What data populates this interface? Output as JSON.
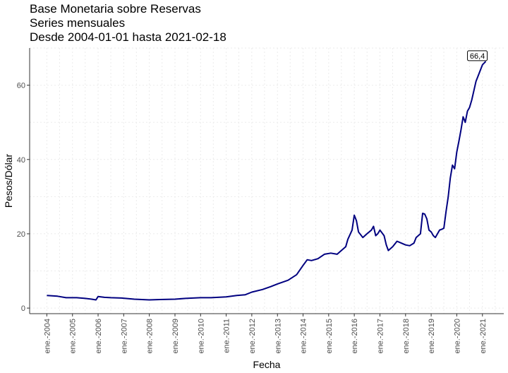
{
  "header": {
    "title": "Base Monetaria sobre Reservas",
    "subtitle": "Series mensuales",
    "range": "Desde 2004-01-01 hasta 2021-02-18"
  },
  "colors": {
    "line": "#000080",
    "axis": "#333333",
    "grid": "#ebebeb"
  },
  "chart_data": {
    "type": "line",
    "title": "Base Monetaria sobre Reservas",
    "xlabel": "Fecha",
    "ylabel": "Pesos/Dólar",
    "xlim": [
      "2003-05-01",
      "2021-11-01"
    ],
    "ylim": [
      -1.5,
      70
    ],
    "grid": "dotted",
    "y_ticks": [
      0,
      20,
      40,
      60
    ],
    "x_ticks": [
      {
        "date": "2004-01-01",
        "label": "ene.-2004"
      },
      {
        "date": "2005-01-01",
        "label": "ene.-2005"
      },
      {
        "date": "2006-01-01",
        "label": "ene.-2006"
      },
      {
        "date": "2007-01-01",
        "label": "ene.-2007"
      },
      {
        "date": "2008-01-01",
        "label": "ene.-2008"
      },
      {
        "date": "2009-01-01",
        "label": "ene.-2009"
      },
      {
        "date": "2010-01-01",
        "label": "ene.-2010"
      },
      {
        "date": "2011-01-01",
        "label": "ene.-2011"
      },
      {
        "date": "2012-01-01",
        "label": "ene.-2012"
      },
      {
        "date": "2013-01-01",
        "label": "ene.-2013"
      },
      {
        "date": "2014-01-01",
        "label": "ene.-2014"
      },
      {
        "date": "2015-01-01",
        "label": "ene.-2015"
      },
      {
        "date": "2016-01-01",
        "label": "ene.-2016"
      },
      {
        "date": "2017-01-01",
        "label": "ene.-2017"
      },
      {
        "date": "2018-01-01",
        "label": "ene.-2018"
      },
      {
        "date": "2019-01-01",
        "label": "ene.-2019"
      },
      {
        "date": "2020-01-01",
        "label": "ene.-2020"
      },
      {
        "date": "2021-01-01",
        "label": "ene.-2021"
      }
    ],
    "annotation": {
      "date": "2021-02-18",
      "value": 66.4,
      "label": "66,4"
    },
    "series": [
      {
        "points": [
          [
            "2004-01-01",
            3.4
          ],
          [
            "2004-06-01",
            3.2
          ],
          [
            "2004-10-01",
            2.8
          ],
          [
            "2005-03-01",
            2.8
          ],
          [
            "2005-07-01",
            2.6
          ],
          [
            "2005-10-01",
            2.4
          ],
          [
            "2005-12-01",
            2.2
          ],
          [
            "2006-01-01",
            3.1
          ],
          [
            "2006-04-01",
            2.9
          ],
          [
            "2006-07-01",
            2.8
          ],
          [
            "2006-12-01",
            2.7
          ],
          [
            "2007-06-01",
            2.4
          ],
          [
            "2008-01-01",
            2.2
          ],
          [
            "2008-06-01",
            2.3
          ],
          [
            "2009-01-01",
            2.4
          ],
          [
            "2009-06-01",
            2.6
          ],
          [
            "2010-01-01",
            2.8
          ],
          [
            "2010-06-01",
            2.8
          ],
          [
            "2011-01-01",
            3.0
          ],
          [
            "2011-06-01",
            3.4
          ],
          [
            "2011-10-01",
            3.6
          ],
          [
            "2012-01-01",
            4.3
          ],
          [
            "2012-06-01",
            5.0
          ],
          [
            "2012-10-01",
            5.8
          ],
          [
            "2013-01-01",
            6.5
          ],
          [
            "2013-06-01",
            7.5
          ],
          [
            "2013-10-01",
            9.0
          ],
          [
            "2014-01-01",
            11.5
          ],
          [
            "2014-03-01",
            13.0
          ],
          [
            "2014-05-01",
            12.8
          ],
          [
            "2014-08-01",
            13.3
          ],
          [
            "2014-11-01",
            14.5
          ],
          [
            "2015-02-01",
            14.8
          ],
          [
            "2015-05-01",
            14.5
          ],
          [
            "2015-07-01",
            15.5
          ],
          [
            "2015-09-01",
            16.5
          ],
          [
            "2015-10-01",
            18.5
          ],
          [
            "2015-12-01",
            21.0
          ],
          [
            "2016-01-01",
            25.0
          ],
          [
            "2016-02-01",
            23.5
          ],
          [
            "2016-03-01",
            20.5
          ],
          [
            "2016-05-01",
            19.0
          ],
          [
            "2016-07-01",
            20.0
          ],
          [
            "2016-09-01",
            21.0
          ],
          [
            "2016-10-01",
            22.0
          ],
          [
            "2016-11-01",
            19.5
          ],
          [
            "2016-12-01",
            20.0
          ],
          [
            "2017-01-01",
            21.0
          ],
          [
            "2017-03-01",
            19.5
          ],
          [
            "2017-04-01",
            17.0
          ],
          [
            "2017-05-01",
            15.5
          ],
          [
            "2017-07-01",
            16.5
          ],
          [
            "2017-09-01",
            18.0
          ],
          [
            "2017-11-01",
            17.5
          ],
          [
            "2018-01-01",
            17.0
          ],
          [
            "2018-03-01",
            16.8
          ],
          [
            "2018-05-01",
            17.5
          ],
          [
            "2018-06-01",
            19.0
          ],
          [
            "2018-07-01",
            19.5
          ],
          [
            "2018-08-01",
            20.0
          ],
          [
            "2018-09-01",
            25.5
          ],
          [
            "2018-10-01",
            25.3
          ],
          [
            "2018-11-01",
            24.0
          ],
          [
            "2018-12-01",
            21.0
          ],
          [
            "2019-01-01",
            20.5
          ],
          [
            "2019-02-01",
            19.5
          ],
          [
            "2019-03-01",
            19.0
          ],
          [
            "2019-05-01",
            21.0
          ],
          [
            "2019-06-01",
            21.2
          ],
          [
            "2019-07-01",
            21.5
          ],
          [
            "2019-08-01",
            26.0
          ],
          [
            "2019-09-01",
            30.0
          ],
          [
            "2019-10-01",
            35.0
          ],
          [
            "2019-11-01",
            38.5
          ],
          [
            "2019-12-01",
            37.5
          ],
          [
            "2020-01-01",
            42.0
          ],
          [
            "2020-02-01",
            45.0
          ],
          [
            "2020-03-01",
            48.0
          ],
          [
            "2020-04-01",
            51.5
          ],
          [
            "2020-05-01",
            50.0
          ],
          [
            "2020-06-01",
            53.0
          ],
          [
            "2020-07-01",
            54.0
          ],
          [
            "2020-08-01",
            56.0
          ],
          [
            "2020-09-01",
            58.5
          ],
          [
            "2020-10-01",
            61.0
          ],
          [
            "2020-11-01",
            62.5
          ],
          [
            "2020-12-01",
            64.0
          ],
          [
            "2021-01-01",
            65.5
          ],
          [
            "2021-02-18",
            66.4
          ]
        ]
      }
    ]
  }
}
